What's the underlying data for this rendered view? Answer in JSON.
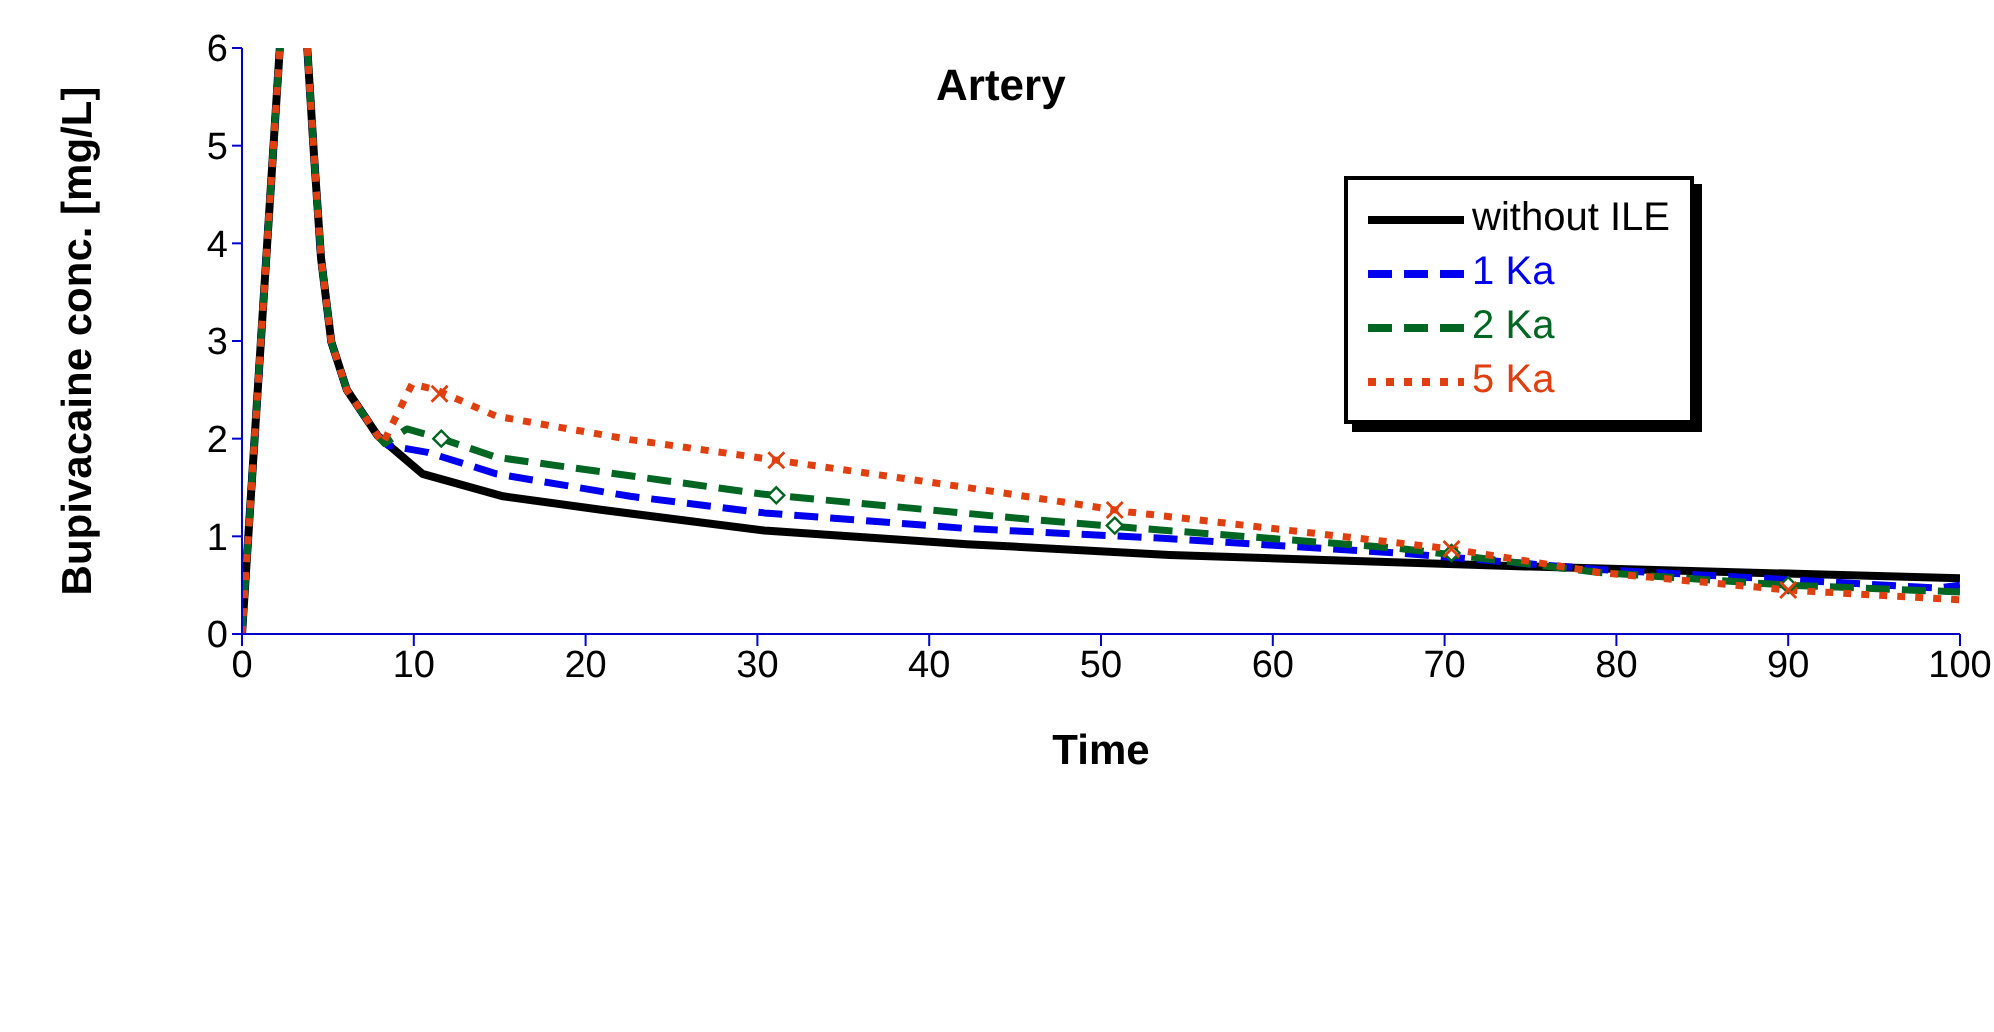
{
  "chart_data": {
    "type": "line",
    "title": "Artery",
    "xlabel": "Time",
    "ylabel": "Bupivacaine conc. [mg/L]",
    "xlim": [
      0,
      100
    ],
    "xticks": [
      0,
      10,
      20,
      30,
      40,
      50,
      60,
      70,
      80,
      90,
      100
    ],
    "ylim": [
      0,
      6
    ],
    "yticks": [
      0,
      1,
      2,
      3,
      4,
      5,
      6
    ],
    "grid": false,
    "legend": "top right",
    "series": [
      {
        "name": "without ILE",
        "color": "#000000",
        "line_style": "solid",
        "x": [
          0,
          1.1,
          2.2,
          3,
          3.8,
          4.2,
          4.6,
          5.2,
          6.1,
          7.9,
          10.5,
          15.2,
          21,
          30.4,
          42.2,
          54,
          75,
          100
        ],
        "values": [
          0,
          3,
          6,
          null,
          6,
          4.88,
          3.85,
          2.99,
          2.5,
          2.03,
          1.64,
          1.41,
          1.27,
          1.06,
          0.92,
          0.81,
          0.69,
          0.57
        ]
      },
      {
        "name": "1 Ka",
        "color": "#0000ee",
        "line_style": "dashed",
        "x": [
          0,
          1.1,
          2.2,
          3,
          3.8,
          4.2,
          4.6,
          5.2,
          6.1,
          7.9,
          8.5,
          10.8,
          14.8,
          22.6,
          30.4,
          42.2,
          53.6,
          67.2,
          79,
          90.7,
          98.6,
          100
        ],
        "values": [
          0,
          3,
          6,
          null,
          6,
          4.88,
          3.85,
          2.99,
          2.5,
          2.03,
          1.93,
          1.86,
          1.64,
          1.41,
          1.24,
          1.08,
          0.98,
          0.83,
          0.66,
          0.55,
          0.47,
          0.5
        ]
      },
      {
        "name": "2 Ka",
        "color": "#006622",
        "line_style": "dashed",
        "x": [
          0,
          1.1,
          2.2,
          3,
          3.8,
          4.2,
          4.6,
          5.2,
          6.1,
          7.9,
          8.3,
          9.6,
          11.6,
          14.8,
          30.4,
          46.1,
          51.6,
          67.2,
          79,
          90,
          100
        ],
        "values": [
          0,
          3,
          6,
          null,
          6,
          4.88,
          3.85,
          2.99,
          2.5,
          2.03,
          1.95,
          2.1,
          2,
          1.81,
          1.43,
          1.17,
          1.09,
          0.88,
          0.63,
          0.5,
          0.43
        ]
      },
      {
        "name": "5 Ka",
        "color": "#e04010",
        "line_style": "dotted",
        "x": [
          0,
          1.1,
          2.2,
          3,
          3.8,
          4.2,
          4.6,
          5.2,
          6.1,
          7.9,
          8.2,
          9.9,
          11.3,
          14.8,
          22.6,
          31.1,
          42.2,
          51.6,
          70.4,
          79,
          90,
          100
        ],
        "values": [
          0,
          3,
          6,
          null,
          6,
          4.88,
          3.85,
          2.99,
          2.5,
          2.03,
          1.95,
          2.56,
          2.5,
          2.23,
          1.99,
          1.78,
          1.5,
          1.25,
          0.87,
          0.63,
          0.45,
          0.35
        ]
      },
      {
        "type": "scatter",
        "color": "#006622",
        "marker": "diamond",
        "x": [
          11.6,
          31.1,
          50.8,
          70.4,
          90
        ],
        "values": [
          2,
          1.42,
          1.11,
          0.83,
          0.5
        ]
      },
      {
        "type": "scatter",
        "color": "#e04010",
        "marker": "cross",
        "x": [
          11.5,
          31.1,
          50.8,
          70.4,
          90
        ],
        "values": [
          2.46,
          1.78,
          1.27,
          0.87,
          0.45
        ]
      }
    ]
  }
}
